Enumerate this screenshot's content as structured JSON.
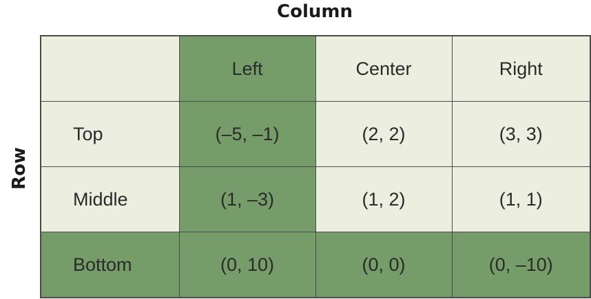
{
  "column_player_label": "Column",
  "row_player_label": "Row",
  "columns": [
    "Left",
    "Center",
    "Right"
  ],
  "rows": [
    {
      "label": "Top",
      "payoffs": [
        "(–5, –1)",
        "(2, 2)",
        "(3, 3)"
      ]
    },
    {
      "label": "Middle",
      "payoffs": [
        "(1, –3)",
        "(1, 2)",
        "(1, 1)"
      ]
    },
    {
      "label": "Bottom",
      "payoffs": [
        "(0, 10)",
        "(0, 0)",
        "(0, –10)"
      ]
    }
  ],
  "colors": {
    "cell_background": "#ecefdf",
    "highlight": "#769d69",
    "border": "#4a4a4a"
  }
}
